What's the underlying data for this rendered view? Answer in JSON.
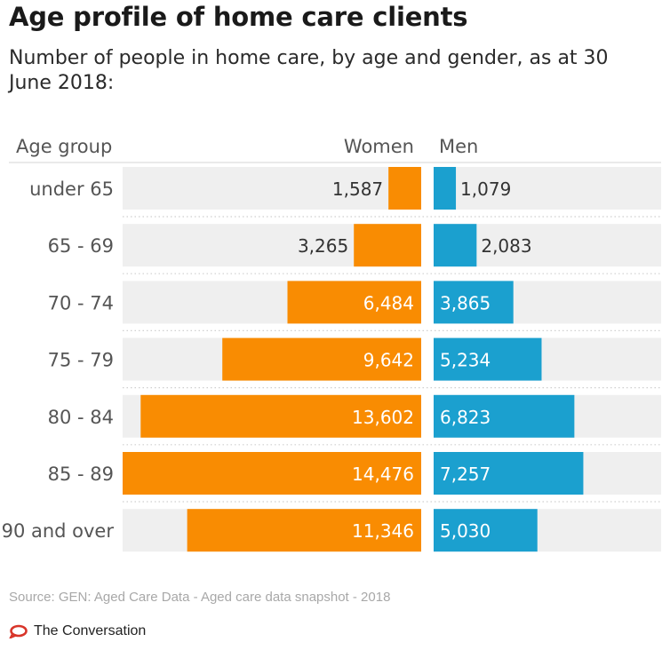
{
  "title": "Age profile of home care clients",
  "subtitle": "Number of people in home care, by age and gender, as at 30 June 2018:",
  "source": "Source: GEN: Aged Care Data - Aged care data snapshot - 2018",
  "brand": "The Conversation",
  "colors": {
    "women": "#f98c02",
    "men": "#1ba0cf",
    "track": "#efefef",
    "brand_red": "#d8352a"
  },
  "chart_data": {
    "type": "bar",
    "orientation": "horizontal-diverging",
    "headers": {
      "category": "Age group",
      "left": "Women",
      "right": "Men"
    },
    "categories": [
      "under 65",
      "65 - 69",
      "70 - 74",
      "75 - 79",
      "80 - 84",
      "85 - 89",
      "90 and over"
    ],
    "series": [
      {
        "name": "Women",
        "values": [
          1587,
          3265,
          6484,
          9642,
          13602,
          14476,
          11346
        ],
        "labels": [
          "1,587",
          "3,265",
          "6,484",
          "9,642",
          "13,602",
          "14,476",
          "11,346"
        ]
      },
      {
        "name": "Men",
        "values": [
          1079,
          2083,
          3865,
          5234,
          6823,
          7257,
          5030
        ],
        "labels": [
          "1,079",
          "2,083",
          "3,865",
          "5,234",
          "6,823",
          "7,257",
          "5,030"
        ]
      }
    ],
    "scale_max": 14476,
    "grid": false
  }
}
